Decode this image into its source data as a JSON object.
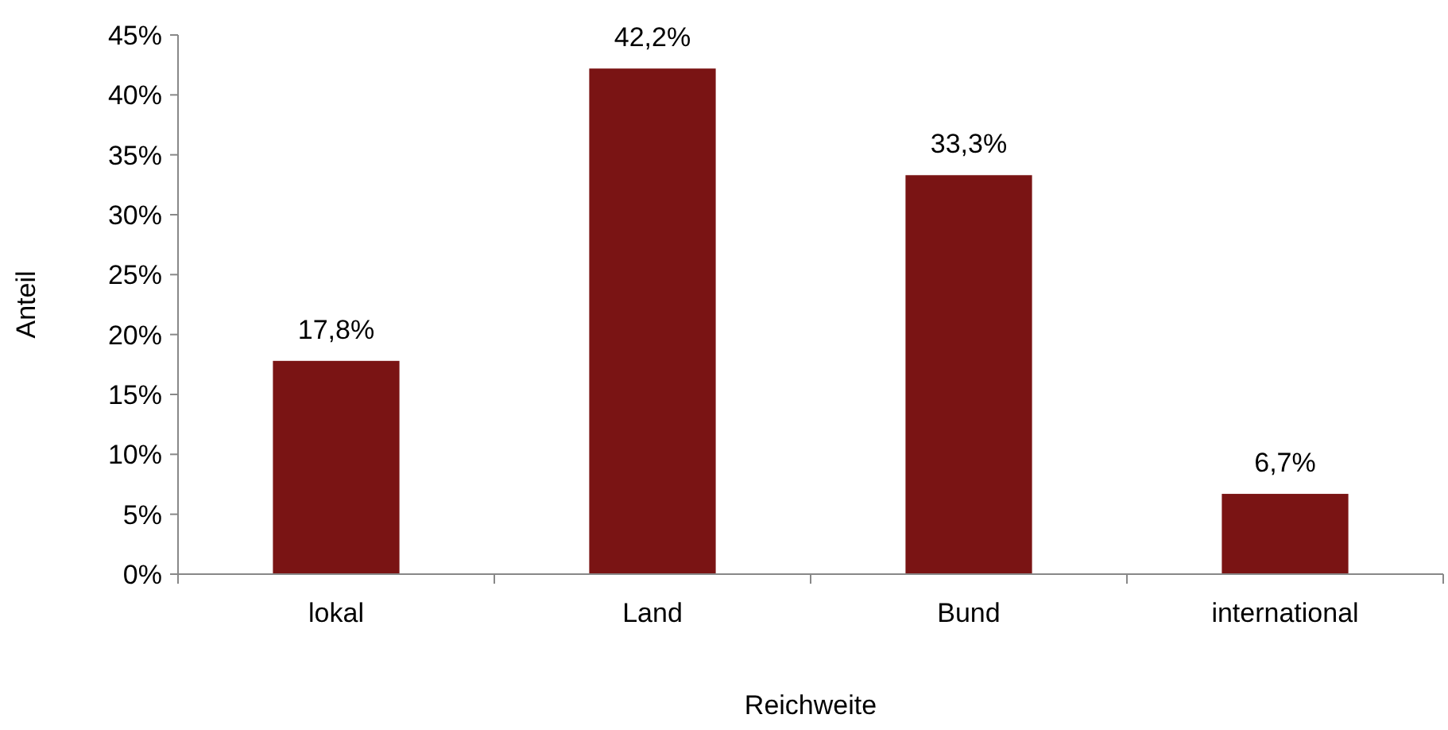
{
  "chart_data": {
    "type": "bar",
    "xlabel": "Reichweite",
    "ylabel": "Anteil",
    "categories": [
      "lokal",
      "Land",
      "Bund",
      "international"
    ],
    "values": [
      17.8,
      42.2,
      33.3,
      6.7
    ],
    "value_labels": [
      "17,8%",
      "42,2%",
      "33,3%",
      "6,7%"
    ],
    "color": "#7a1414",
    "ylim": [
      0,
      45
    ],
    "yticks": [
      {
        "value": 0,
        "label": "0%"
      },
      {
        "value": 5,
        "label": "5%"
      },
      {
        "value": 10,
        "label": "10%"
      },
      {
        "value": 15,
        "label": "15%"
      },
      {
        "value": 20,
        "label": "20%"
      },
      {
        "value": 25,
        "label": "25%"
      },
      {
        "value": 30,
        "label": "30%"
      },
      {
        "value": 35,
        "label": "35%"
      },
      {
        "value": 40,
        "label": "40%"
      },
      {
        "value": 45,
        "label": "45%"
      }
    ],
    "grid": false
  }
}
